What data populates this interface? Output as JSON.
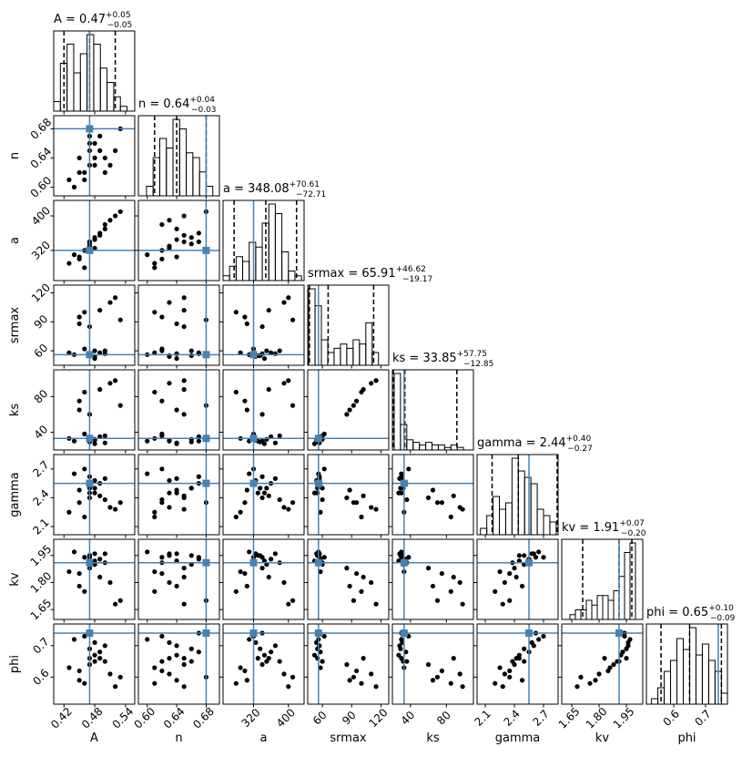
{
  "chart_data": {
    "type": "corner",
    "truth_color": "#4682b4",
    "parameters": [
      {
        "name": "A",
        "title": "A = 0.47",
        "plus": "+0.05",
        "minus": "−0.05",
        "truth": 0.47,
        "quantiles": [
          0.42,
          0.47,
          0.52
        ],
        "lim": [
          0.4,
          0.558
        ],
        "ticks": [
          0.42,
          0.48,
          0.54
        ],
        "bins": [
          0.4,
          0.413,
          0.426,
          0.439,
          0.452,
          0.465,
          0.478,
          0.491,
          0.504,
          0.517,
          0.53,
          0.543,
          0.556
        ],
        "counts": [
          2,
          10,
          14,
          8,
          12,
          16,
          14,
          9,
          6,
          3,
          1,
          0
        ]
      },
      {
        "name": "n",
        "title": "n = 0.64",
        "plus": "+0.04",
        "minus": "−0.03",
        "truth": 0.68,
        "quantiles": [
          0.61,
          0.64,
          0.68
        ],
        "lim": [
          0.588,
          0.698
        ],
        "ticks": [
          {
            "value": 0.6,
            "label": "0.60"
          },
          0.64,
          0.68
        ],
        "bins": [
          0.59,
          0.599,
          0.608,
          0.617,
          0.626,
          0.635,
          0.644,
          0.653,
          0.662,
          0.671,
          0.68,
          0.689,
          0.698
        ],
        "counts": [
          0,
          2,
          8,
          12,
          10,
          16,
          14,
          9,
          8,
          5,
          2,
          0
        ]
      },
      {
        "name": "a",
        "title": "a = 348.08",
        "plus": "+70.61",
        "minus": "−72.71",
        "truth": 320,
        "quantiles": [
          275.37,
          348.08,
          418.69
        ],
        "lim": [
          250,
          436
        ],
        "ticks": [
          320,
          400
        ],
        "bins": [
          250,
          265,
          280,
          295,
          310,
          325,
          340,
          355,
          370,
          385,
          400,
          415,
          430
        ],
        "counts": [
          1,
          3,
          5,
          4,
          8,
          7,
          12,
          16,
          14,
          6,
          2,
          1
        ]
      },
      {
        "name": "srmax",
        "title": "srmax = 65.91",
        "plus": "+46.62",
        "minus": "−19.17",
        "truth": 56,
        "quantiles": [
          46.74,
          65.91,
          112.53
        ],
        "lim": [
          45,
          128
        ],
        "ticks": [
          60,
          90,
          120
        ],
        "bins": [
          46,
          52.5,
          59,
          65.5,
          72,
          78.5,
          85,
          91.5,
          98,
          104.5,
          111,
          117.5,
          124
        ],
        "counts": [
          18,
          14,
          6,
          3,
          4,
          5,
          4,
          6,
          5,
          10,
          3,
          0
        ]
      },
      {
        "name": "ks",
        "title": "ks = 33.85",
        "plus": "+57.75",
        "minus": "−12.85",
        "truth": 33,
        "quantiles": [
          21,
          33.85,
          91.6
        ],
        "lim": [
          20,
          110
        ],
        "ticks": [
          40,
          80
        ],
        "bins": [
          22,
          29,
          36,
          43,
          50,
          57,
          64,
          71,
          78,
          85,
          92,
          99,
          106
        ],
        "counts": [
          30,
          10,
          4,
          3,
          2,
          3,
          2,
          2,
          1,
          2,
          1,
          0
        ]
      },
      {
        "name": "gamma",
        "title": "gamma = 2.44",
        "plus": "+0.40",
        "minus": "−0.27",
        "truth": 2.55,
        "quantiles": [
          2.17,
          2.44,
          2.84
        ],
        "lim": [
          2.015,
          2.85
        ],
        "ticks": [
          2.1,
          2.4,
          2.7
        ],
        "bins": [
          2.05,
          2.115,
          2.18,
          2.245,
          2.31,
          2.375,
          2.44,
          2.505,
          2.57,
          2.635,
          2.7,
          2.765,
          2.83
        ],
        "counts": [
          1,
          3,
          6,
          4,
          5,
          12,
          10,
          9,
          8,
          4,
          3,
          2
        ]
      },
      {
        "name": "kv",
        "title": "kv = 1.91",
        "plus": "+0.07",
        "minus": "−0.20",
        "truth": 1.91,
        "quantiles": [
          1.71,
          1.91,
          1.98
        ],
        "lim": [
          1.595,
          2.04
        ],
        "ticks": [
          1.65,
          {
            "value": 1.8,
            "label": "1.80"
          },
          1.95
        ],
        "bins": [
          1.64,
          1.67,
          1.7,
          1.73,
          1.76,
          1.79,
          1.82,
          1.85,
          1.88,
          1.91,
          1.94,
          1.97,
          2.0
        ],
        "counts": [
          1,
          2,
          2,
          4,
          3,
          5,
          5,
          4,
          6,
          9,
          14,
          16
        ]
      },
      {
        "name": "phi",
        "title": "phi = 0.65",
        "plus": "+0.10",
        "minus": "−0.09",
        "truth": 0.74,
        "quantiles": [
          0.56,
          0.65,
          0.75
        ],
        "lim": [
          0.514,
          0.769
        ],
        "ticks": [
          0.6,
          0.7
        ],
        "bins": [
          0.53,
          0.55,
          0.57,
          0.59,
          0.61,
          0.63,
          0.65,
          0.67,
          0.69,
          0.71,
          0.73,
          0.75,
          0.77
        ],
        "counts": [
          1,
          3,
          6,
          8,
          12,
          10,
          14,
          9,
          11,
          8,
          6,
          2
        ]
      }
    ],
    "samples": [
      [
        0.47,
        0.63,
        330,
        55,
        30,
        2.45,
        1.95,
        0.66
      ],
      [
        0.48,
        0.66,
        350,
        60,
        32,
        2.5,
        1.9,
        0.65
      ],
      [
        0.45,
        0.62,
        300,
        95,
        75,
        2.35,
        1.85,
        0.62
      ],
      [
        0.5,
        0.64,
        370,
        57,
        28,
        2.6,
        1.96,
        0.7
      ],
      [
        0.46,
        0.61,
        280,
        100,
        85,
        2.2,
        1.75,
        0.58
      ],
      [
        0.49,
        0.67,
        360,
        58,
        35,
        2.55,
        1.93,
        0.68
      ],
      [
        0.47,
        0.65,
        340,
        85,
        60,
        2.4,
        1.88,
        0.64
      ],
      [
        0.44,
        0.6,
        310,
        56,
        30,
        2.65,
        1.97,
        0.72
      ],
      [
        0.51,
        0.63,
        390,
        110,
        95,
        2.3,
        1.8,
        0.61
      ],
      [
        0.48,
        0.64,
        345,
        52,
        27,
        2.45,
        1.92,
        0.67
      ],
      [
        0.46,
        0.62,
        320,
        62,
        38,
        2.7,
        1.94,
        0.73
      ],
      [
        0.53,
        0.68,
        410,
        92,
        70,
        2.35,
        1.7,
        0.6
      ],
      [
        0.47,
        0.66,
        335,
        55,
        29,
        2.5,
        1.95,
        0.69
      ],
      [
        0.43,
        0.61,
        290,
        58,
        33,
        2.25,
        1.86,
        0.63
      ],
      [
        0.49,
        0.65,
        355,
        102,
        88,
        2.42,
        1.83,
        0.66
      ],
      [
        0.48,
        0.63,
        325,
        54,
        31,
        2.58,
        1.96,
        0.71
      ],
      [
        0.45,
        0.64,
        305,
        88,
        65,
        2.48,
        1.78,
        0.59
      ],
      [
        0.5,
        0.62,
        380,
        60,
        36,
        2.38,
        1.91,
        0.65
      ],
      [
        0.47,
        0.67,
        340,
        57,
        30,
        2.62,
        1.94,
        0.74
      ],
      [
        0.52,
        0.65,
        400,
        115,
        98,
        2.28,
        1.68,
        0.57
      ]
    ]
  }
}
